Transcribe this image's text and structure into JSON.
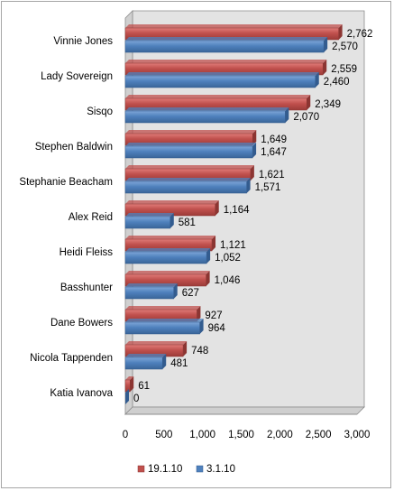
{
  "chart_data": {
    "type": "bar",
    "orientation": "horizontal",
    "categories": [
      "Vinnie Jones",
      "Lady Sovereign",
      "Sisqo",
      "Stephen Baldwin",
      "Stephanie Beacham",
      "Alex Reid",
      "Heidi Fleiss",
      "Basshunter",
      "Dane Bowers",
      "Nicola Tappenden",
      "Katia Ivanova"
    ],
    "series": [
      {
        "name": "19.1.10",
        "color": "#c0504d",
        "values": [
          2762,
          2559,
          2349,
          1649,
          1621,
          1164,
          1121,
          1046,
          927,
          748,
          61
        ]
      },
      {
        "name": "3.1.10",
        "color": "#4f81bd",
        "values": [
          2570,
          2460,
          2070,
          1647,
          1571,
          581,
          1052,
          627,
          964,
          481,
          0
        ]
      }
    ],
    "xlim": [
      0,
      3000
    ],
    "xticks": [
      "0",
      "500",
      "1,000",
      "1,500",
      "2,000",
      "2,500",
      "3,000"
    ],
    "grid": false,
    "legend_position": "bottom"
  }
}
